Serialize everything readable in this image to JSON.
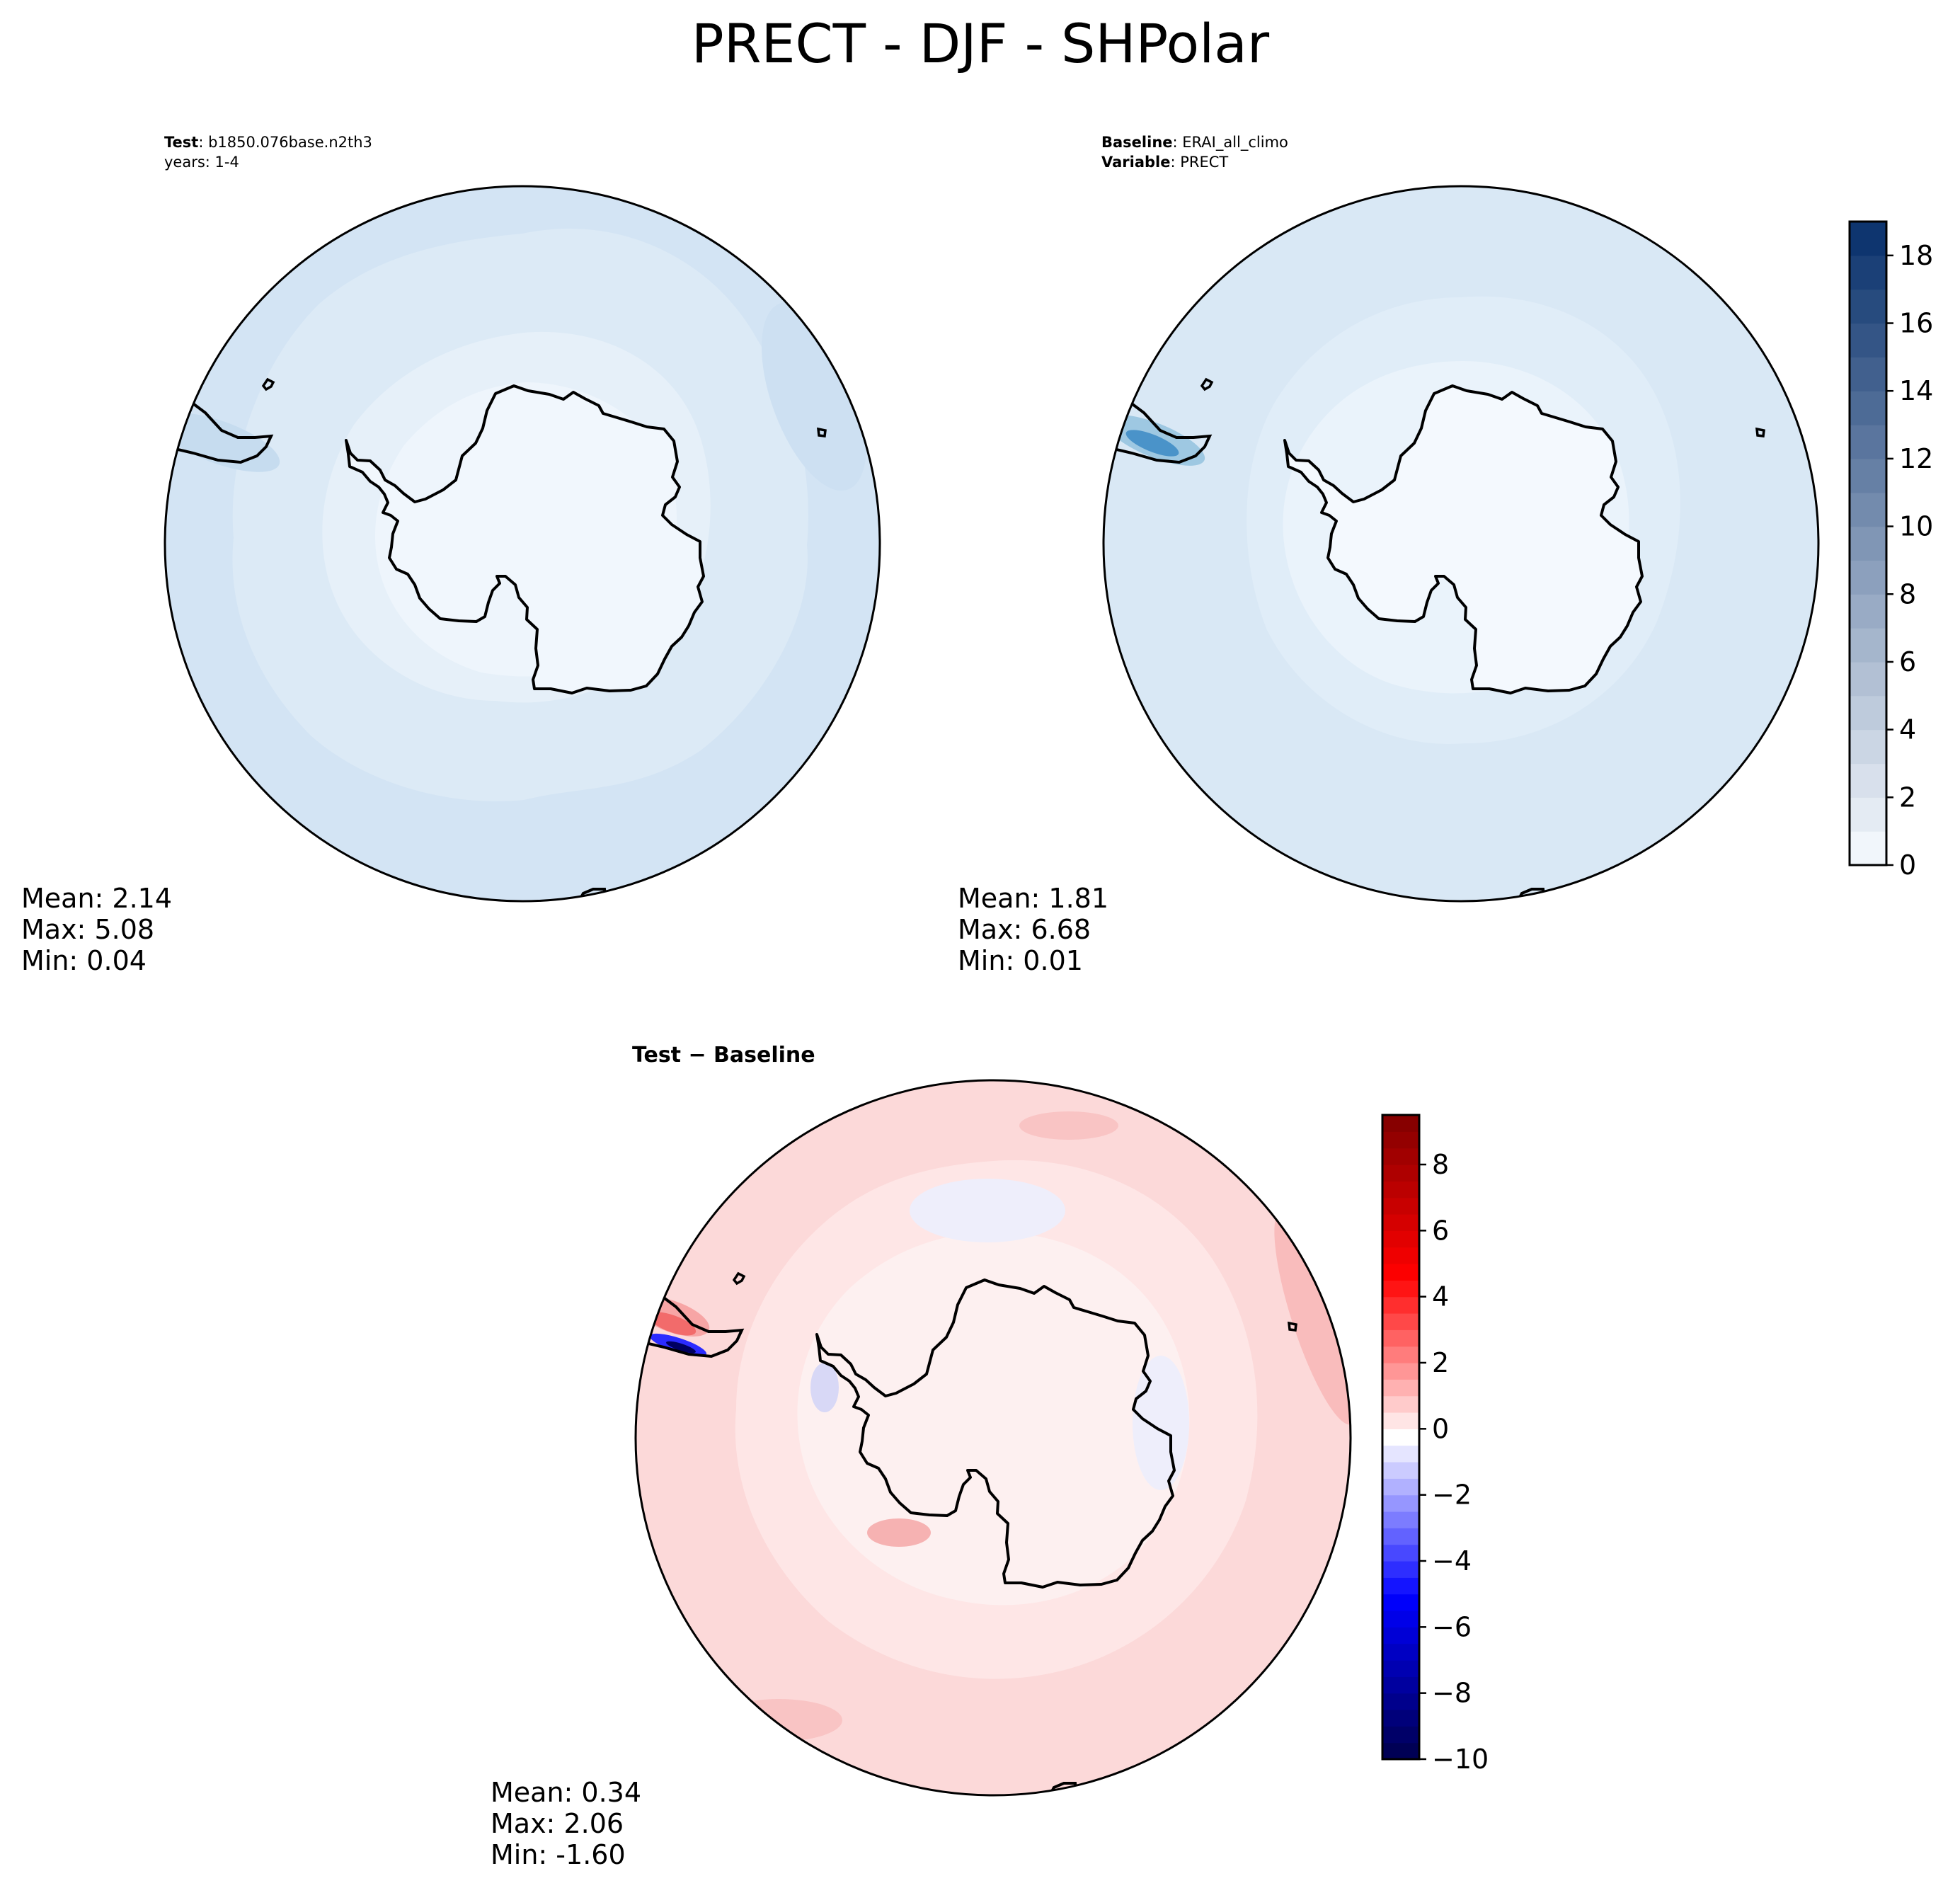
{
  "title": "PRECT - DJF - SHPolar",
  "panels": [
    {
      "id": "test",
      "header": [
        {
          "bold": "Test",
          "text": ": b1850.076base.n2th3"
        },
        {
          "bold": "",
          "text": "years: 1-4"
        }
      ],
      "stats": [
        "Mean:  2.14",
        "Max:  5.08",
        "Min:  0.04"
      ]
    },
    {
      "id": "baseline",
      "header": [
        {
          "bold": "Baseline",
          "text": ": ERAI_all_climo"
        },
        {
          "bold": "Variable",
          "text": ": PRECT"
        }
      ],
      "stats": [
        "Mean:  1.81",
        "Max:  6.68",
        "Min:  0.01"
      ]
    },
    {
      "id": "diff",
      "header": [
        {
          "bold": "Test − Baseline",
          "text": ""
        }
      ],
      "stats": [
        "Mean:  0.34",
        "Max:  2.06",
        "Min: -1.60"
      ]
    }
  ],
  "colorbars": [
    {
      "id": "blues",
      "range": [
        0,
        19
      ],
      "step": 1,
      "ticks": [
        0,
        2,
        4,
        6,
        8,
        10,
        12,
        14,
        16,
        18
      ],
      "tick_labels": [
        "0",
        "2",
        "4",
        "6",
        "8",
        "10",
        "12",
        "14",
        "16",
        "18"
      ],
      "colors": [
        "#f7fbff",
        "#08306b"
      ]
    },
    {
      "id": "seismic",
      "range": [
        -10,
        9.5
      ],
      "step": 0.5,
      "ticks": [
        -10,
        -8,
        -6,
        -4,
        -2,
        0,
        2,
        4,
        6,
        8
      ],
      "tick_labels": [
        "−10",
        "−8",
        "−6",
        "−4",
        "−2",
        "0",
        "2",
        "4",
        "6",
        "8"
      ],
      "colors": [
        "#00004c",
        "#0000ff",
        "#ffffff",
        "#ff0000",
        "#800000"
      ]
    }
  ]
}
